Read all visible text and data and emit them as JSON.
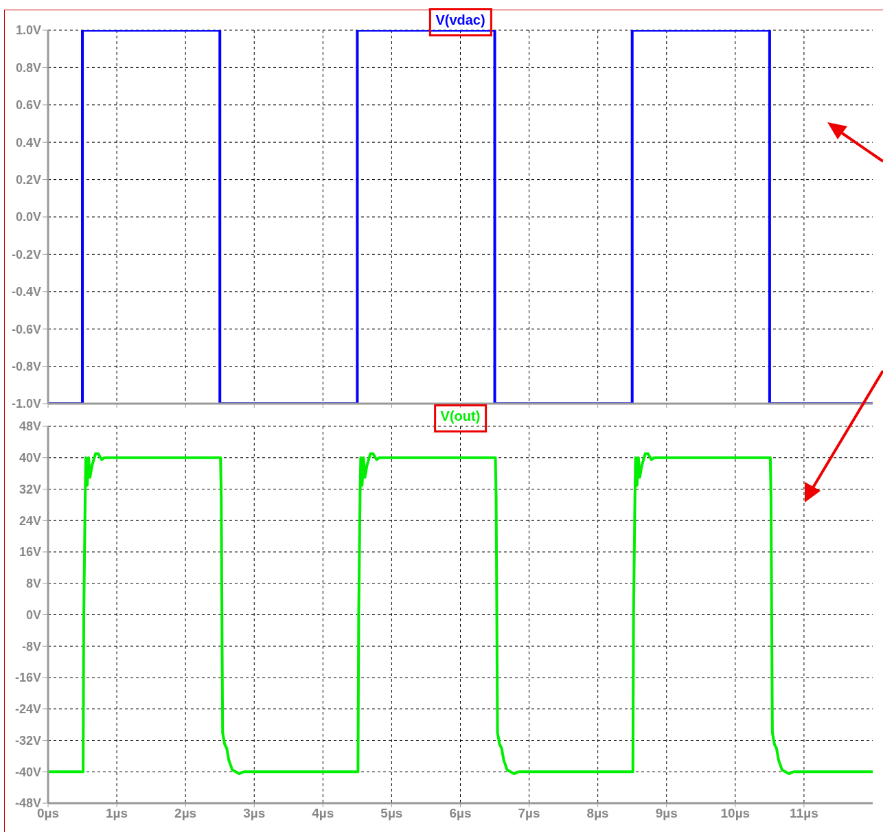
{
  "chart_data": [
    {
      "type": "line",
      "legend": "top",
      "grid": true,
      "marker": "none",
      "line_style": "solid",
      "tick_labels": "y",
      "xlim": [
        0,
        12
      ],
      "xticks": [
        0,
        1,
        2,
        3,
        4,
        5,
        6,
        7,
        8,
        9,
        10,
        11
      ],
      "ylim": [
        -1,
        1
      ],
      "yticks": [
        {
          "value": 1,
          "label": "1.0V"
        },
        {
          "value": 0.8,
          "label": "0.8V"
        },
        {
          "value": 0.6,
          "label": "0.6V"
        },
        {
          "value": 0.4,
          "label": "0.4V"
        },
        {
          "value": 0.2,
          "label": "0.2V"
        },
        {
          "value": 0,
          "label": "0.0V"
        },
        {
          "value": -0.2,
          "label": "-0.2V"
        },
        {
          "value": -0.4,
          "label": "-0.4V"
        },
        {
          "value": -0.6,
          "label": "-0.6V"
        },
        {
          "value": -0.8,
          "label": "-0.8V"
        },
        {
          "value": -1,
          "label": "-1.0V"
        }
      ],
      "series": [
        {
          "name": "V(vdac)",
          "color": "#0000ff",
          "x": [
            0,
            0.5,
            0.5,
            2.5,
            2.5,
            4.5,
            4.5,
            6.5,
            6.5,
            8.5,
            8.5,
            10.5,
            10.5,
            12
          ],
          "values": [
            -1,
            -1,
            1,
            1,
            -1,
            -1,
            1,
            1,
            -1,
            -1,
            1,
            1,
            -1,
            -1
          ]
        }
      ]
    },
    {
      "type": "line",
      "legend": "top",
      "grid": true,
      "marker": "none",
      "line_style": "solid",
      "xlim": [
        0,
        12
      ],
      "xticks": [
        {
          "value": 0,
          "label": "0µs"
        },
        {
          "value": 1,
          "label": "1µs"
        },
        {
          "value": 2,
          "label": "2µs"
        },
        {
          "value": 3,
          "label": "3µs"
        },
        {
          "value": 4,
          "label": "4µs"
        },
        {
          "value": 5,
          "label": "5µs"
        },
        {
          "value": 6,
          "label": "6µs"
        },
        {
          "value": 7,
          "label": "7µs"
        },
        {
          "value": 8,
          "label": "8µs"
        },
        {
          "value": 9,
          "label": "9µs"
        },
        {
          "value": 10,
          "label": "10µs"
        },
        {
          "value": 11,
          "label": "11µs"
        }
      ],
      "ylim": [
        -48,
        48
      ],
      "yticks": [
        {
          "value": 48,
          "label": "48V"
        },
        {
          "value": 40,
          "label": "40V"
        },
        {
          "value": 32,
          "label": "32V"
        },
        {
          "value": 24,
          "label": "24V"
        },
        {
          "value": 16,
          "label": "16V"
        },
        {
          "value": 8,
          "label": "8V"
        },
        {
          "value": 0,
          "label": "0V"
        },
        {
          "value": -8,
          "label": "-8V"
        },
        {
          "value": -16,
          "label": "-16V"
        },
        {
          "value": -24,
          "label": "-24V"
        },
        {
          "value": -32,
          "label": "-32V"
        },
        {
          "value": -40,
          "label": "-40V"
        },
        {
          "value": -48,
          "label": "-48V"
        }
      ],
      "series": [
        {
          "name": "V(out)",
          "color": "#00ee00",
          "x": [
            0,
            0.51,
            0.52,
            0.54,
            0.55,
            0.57,
            0.59,
            0.61,
            0.64,
            0.69,
            0.73,
            0.78,
            0.82,
            2.51,
            2.52,
            2.53,
            2.54,
            2.57,
            2.6,
            2.63,
            2.68,
            2.78,
            2.85,
            4.51,
            4.52,
            4.54,
            4.55,
            4.57,
            4.59,
            4.61,
            4.64,
            4.69,
            4.73,
            4.78,
            4.82,
            6.51,
            6.52,
            6.53,
            6.54,
            6.57,
            6.6,
            6.63,
            6.68,
            6.78,
            6.85,
            8.51,
            8.52,
            8.54,
            8.55,
            8.57,
            8.59,
            8.61,
            8.64,
            8.69,
            8.73,
            8.78,
            8.82,
            10.51,
            10.52,
            10.53,
            10.54,
            10.57,
            10.6,
            10.63,
            10.68,
            10.78,
            10.85,
            12
          ],
          "values": [
            -40,
            -40,
            0,
            30,
            40,
            33,
            40,
            35,
            38,
            41,
            41,
            39.5,
            40,
            40,
            30,
            0,
            -30,
            -33,
            -34,
            -37,
            -39.5,
            -40.5,
            -40,
            -40,
            0,
            30,
            40,
            33,
            40,
            35,
            38,
            41,
            41,
            39.5,
            40,
            40,
            30,
            0,
            -30,
            -33,
            -34,
            -37,
            -39.5,
            -40.5,
            -40,
            -40,
            0,
            30,
            40,
            33,
            40,
            35,
            38,
            41,
            41,
            39.5,
            40,
            40,
            30,
            0,
            -30,
            -33,
            -34,
            -37,
            -39.5,
            -40.5,
            -40,
            -40
          ]
        }
      ]
    }
  ]
}
